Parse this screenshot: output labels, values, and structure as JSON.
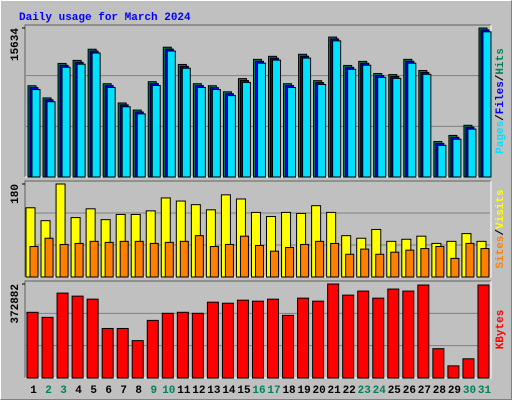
{
  "chart_data": {
    "type": "bar",
    "title": "Daily usage for March 2024",
    "categories": [
      "1",
      "2",
      "3",
      "4",
      "5",
      "6",
      "7",
      "8",
      "9",
      "10",
      "11",
      "12",
      "13",
      "14",
      "15",
      "16",
      "17",
      "18",
      "19",
      "20",
      "21",
      "22",
      "23",
      "24",
      "25",
      "26",
      "27",
      "28",
      "29",
      "30",
      "31"
    ],
    "category_colors": [
      "#000000",
      "#00805c",
      "#00805c",
      "#000000",
      "#000000",
      "#000000",
      "#000000",
      "#000000",
      "#00805c",
      "#00805c",
      "#000000",
      "#000000",
      "#000000",
      "#000000",
      "#000000",
      "#00805c",
      "#00805c",
      "#000000",
      "#000000",
      "#000000",
      "#000000",
      "#000000",
      "#00805c",
      "#00805c",
      "#000000",
      "#000000",
      "#000000",
      "#000000",
      "#000000",
      "#00805c",
      "#00805c"
    ],
    "legend_separator": "/",
    "panels": [
      {
        "ylim": [
          0,
          15634
        ],
        "yticks": [
          15634
        ],
        "series": [
          {
            "name": "Hits",
            "color": "#00805c",
            "values": [
              9576,
              8299,
              11917,
              12236,
              13406,
              9789,
              7767,
              7022,
              10002,
              13619,
              11810,
              9789,
              9576,
              8938,
              10321,
              12342,
              12662,
              9789,
              12874,
              10108,
              14683,
              11704,
              12130,
              10853,
              10746,
              12342,
              11172,
              3724,
              4362,
              5426,
              15634
            ]
          },
          {
            "name": "Files",
            "color": "#0000ff",
            "values": [
              9376,
              8099,
              11717,
              12036,
              13206,
              9589,
              7567,
              6822,
              9802,
              13419,
              11610,
              9589,
              9376,
              8738,
              10121,
              12142,
              12462,
              9589,
              12674,
              9908,
              14483,
              11504,
              11930,
              10653,
              10546,
              12142,
              10972,
              3524,
              4162,
              5226,
              15434
            ]
          },
          {
            "name": "Pages",
            "color": "#00e0ff",
            "values": [
              9176,
              7899,
              11517,
              11836,
              13006,
              9389,
              7367,
              6622,
              9602,
              13219,
              11410,
              9389,
              9176,
              8538,
              9921,
              11942,
              12262,
              9389,
              12474,
              9708,
              14283,
              11304,
              11730,
              10453,
              10346,
              11942,
              10772,
              3324,
              3962,
              5026,
              15234
            ]
          }
        ]
      },
      {
        "ylim": [
          0,
          180
        ],
        "yticks": [
          180
        ],
        "series": [
          {
            "name": "Visits",
            "color": "#ffff00",
            "values": [
              134,
              109,
              180,
              115,
              132,
              111,
              121,
              121,
              128,
              153,
              147,
              140,
              130,
              159,
              151,
              125,
              117,
              125,
              123,
              138,
              125,
              80,
              75,
              92,
              69,
              73,
              79,
              65,
              69,
              84,
              69
            ]
          },
          {
            "name": "Sites",
            "color": "#ff8000",
            "values": [
              59,
              75,
              63,
              65,
              69,
              67,
              69,
              69,
              65,
              67,
              69,
              80,
              59,
              63,
              79,
              61,
              50,
              57,
              63,
              69,
              65,
              44,
              54,
              44,
              48,
              52,
              55,
              59,
              36,
              65,
              55
            ]
          }
        ]
      },
      {
        "ylim": [
          0,
          372882
        ],
        "yticks": [
          372882
        ],
        "series": [
          {
            "name": "KBytes",
            "color": "#ff0000",
            "values": [
              260618,
              240570,
              336798,
              324770,
              312741,
              196466,
              196466,
              148352,
              228542,
              256608,
              260618,
              256608,
              300713,
              296703,
              308732,
              304722,
              312741,
              248589,
              316751,
              304722,
              372882,
              328779,
              344817,
              316751,
              352836,
              344817,
              368874,
              116276,
              48114,
              76181,
              368874
            ]
          }
        ]
      }
    ]
  }
}
